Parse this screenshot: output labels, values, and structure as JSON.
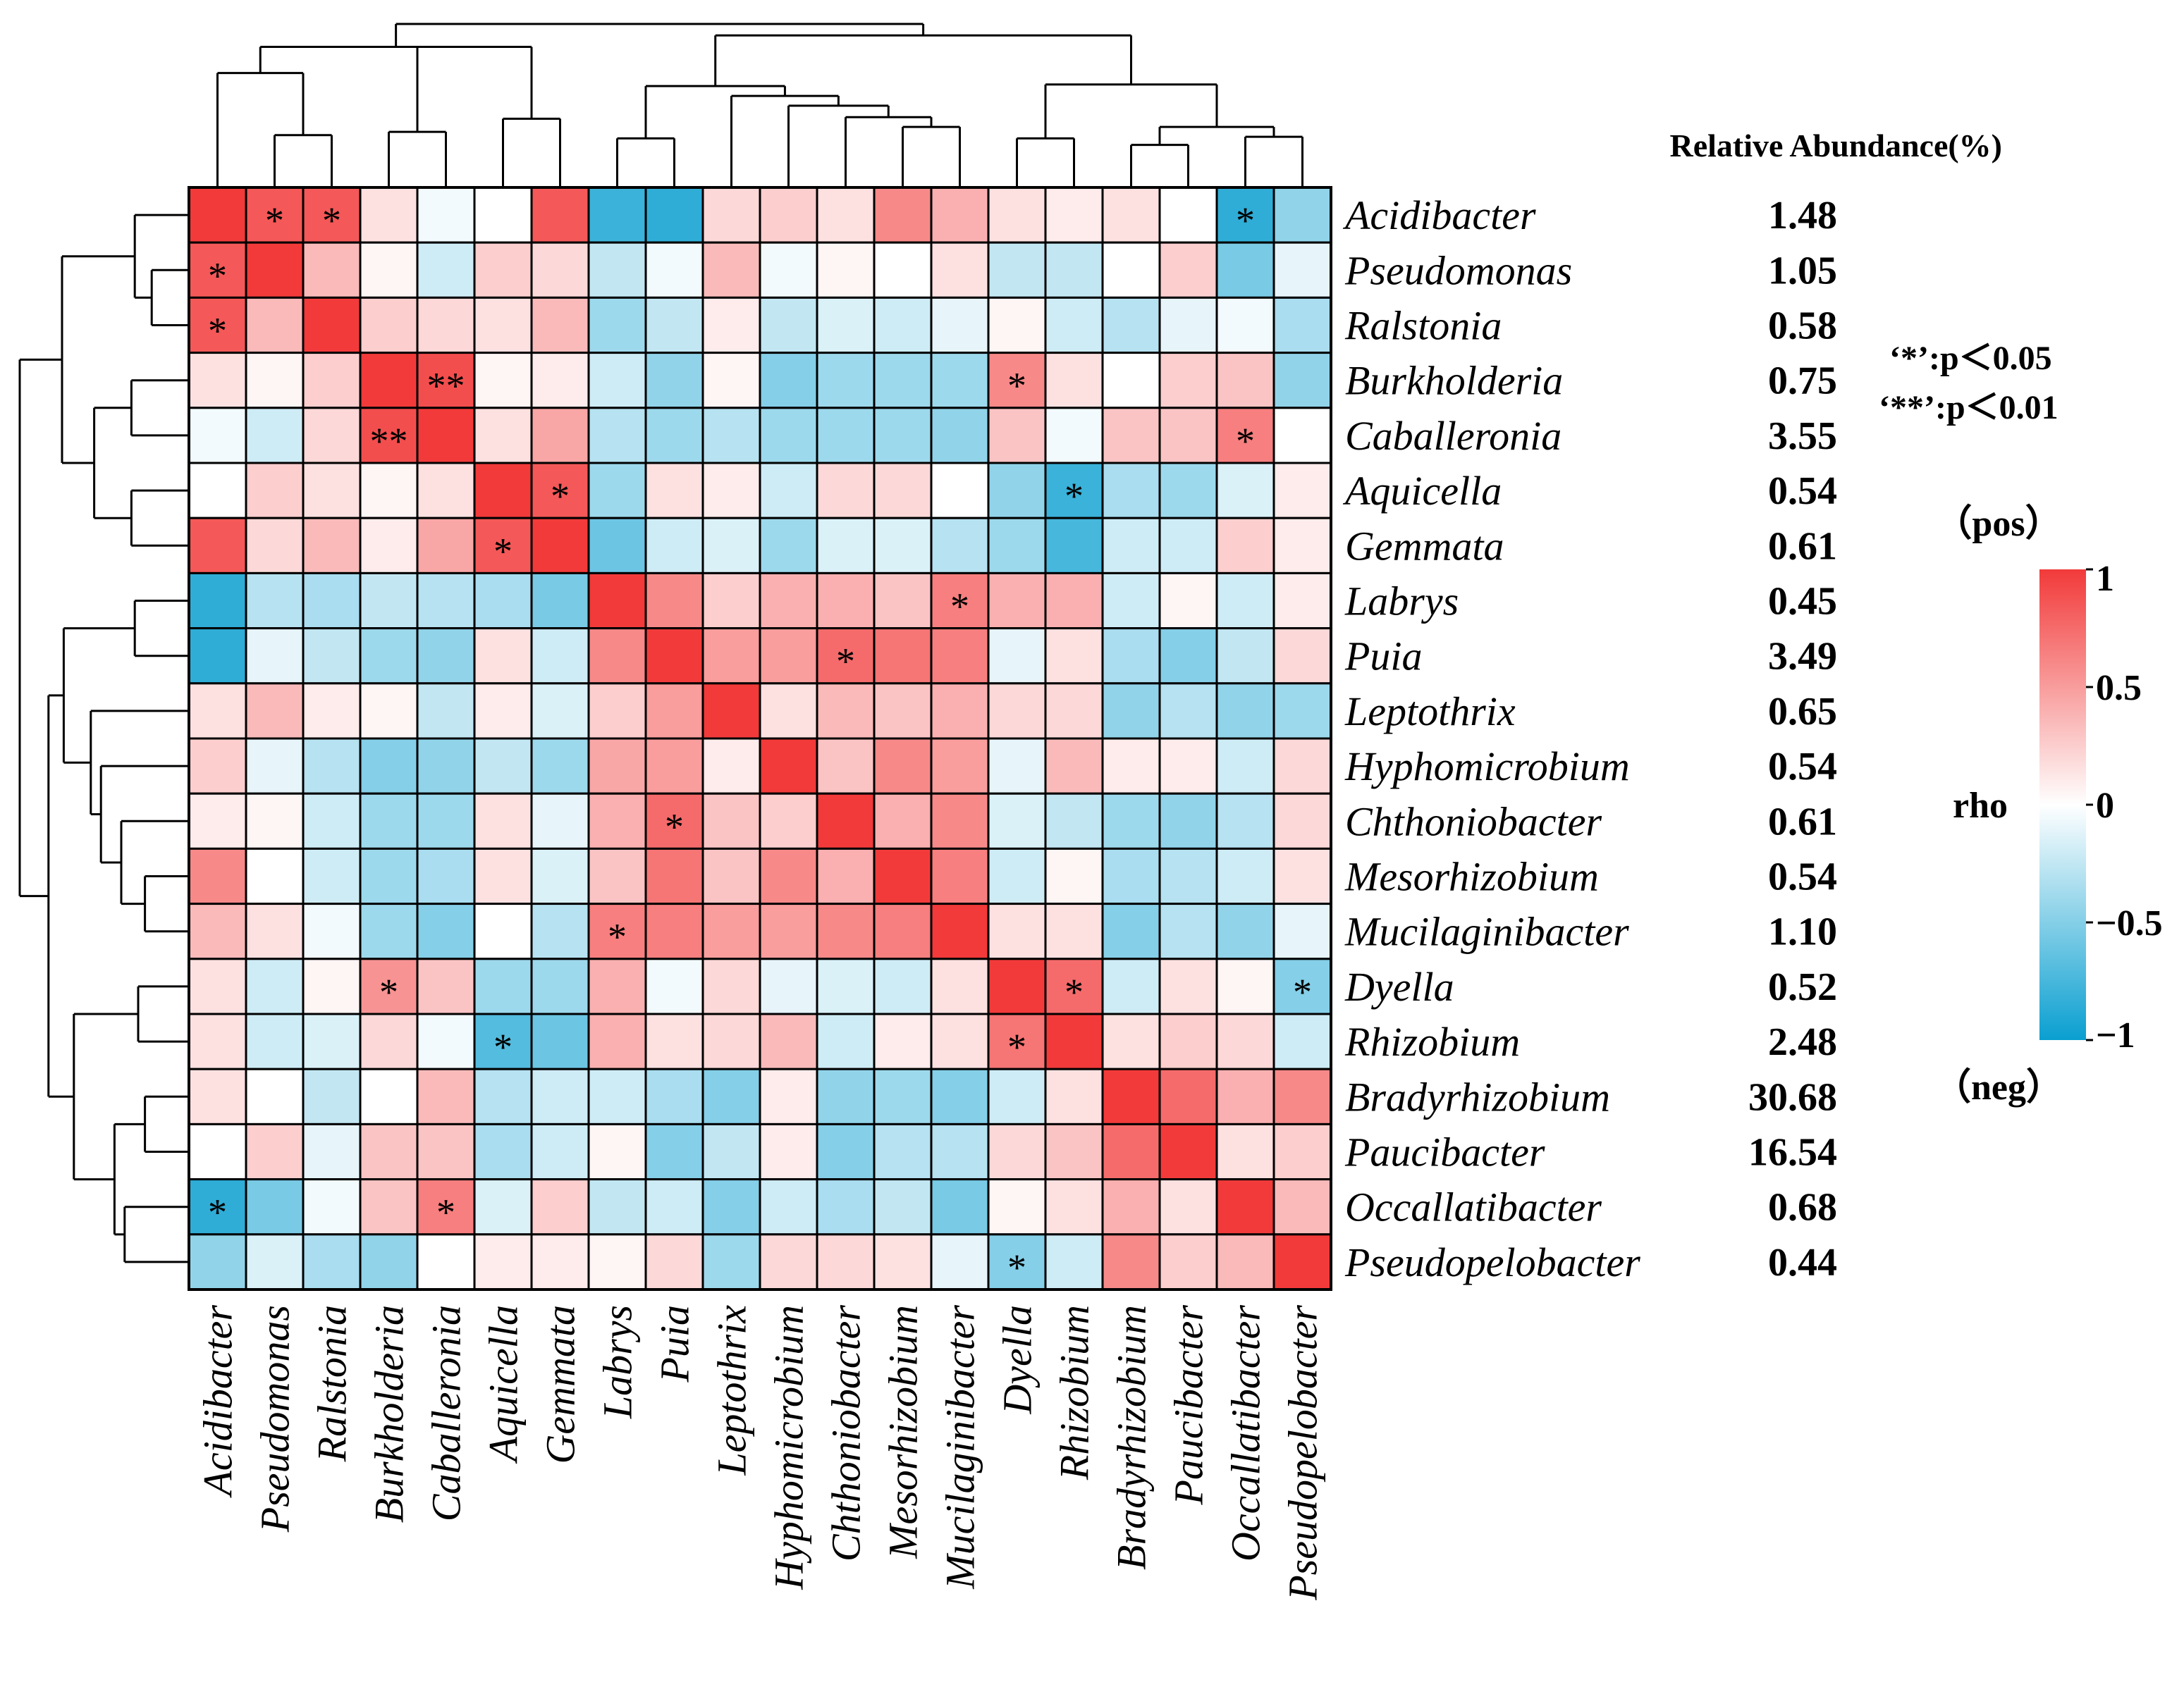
{
  "chart_data": {
    "type": "heatmap",
    "rows": [
      "Acidibacter",
      "Pseudomonas",
      "Ralstonia",
      "Burkholderia",
      "Caballeronia",
      "Aquicella",
      "Gemmata",
      "Labrys",
      "Puia",
      "Leptothrix",
      "Hyphomicrobium",
      "Chthoniobacter",
      "Mesorhizobium",
      "Mucilaginibacter",
      "Dyella",
      "Rhizobium",
      "Bradyrhizobium",
      "Paucibacter",
      "Occallatibacter",
      "Pseudopelobacter"
    ],
    "columns": [
      "Acidibacter",
      "Pseudomonas",
      "Ralstonia",
      "Burkholderia",
      "Caballeronia",
      "Aquicella",
      "Gemmata",
      "Labrys",
      "Puia",
      "Leptothrix",
      "Hyphomicrobium",
      "Chthoniobacter",
      "Mesorhizobium",
      "Mucilaginibacter",
      "Dyella",
      "Rhizobium",
      "Bradyrhizobium",
      "Paucibacter",
      "Occallatibacter",
      "Pseudopelobacter"
    ],
    "values": [
      [
        1.0,
        0.85,
        0.85,
        0.15,
        -0.05,
        0.0,
        0.85,
        -0.8,
        -0.85,
        0.2,
        0.25,
        0.15,
        0.6,
        0.4,
        0.15,
        0.1,
        0.15,
        0.0,
        -0.85,
        -0.45
      ],
      [
        0.85,
        1.0,
        0.35,
        0.05,
        -0.2,
        0.25,
        0.2,
        -0.25,
        -0.05,
        0.35,
        -0.05,
        0.05,
        0.0,
        0.15,
        -0.25,
        -0.25,
        0.0,
        0.25,
        -0.55,
        -0.1
      ],
      [
        0.85,
        0.35,
        1.0,
        0.25,
        0.2,
        0.15,
        0.35,
        -0.4,
        -0.25,
        0.1,
        -0.25,
        -0.15,
        -0.2,
        -0.1,
        0.05,
        -0.2,
        -0.3,
        -0.1,
        -0.05,
        -0.35
      ],
      [
        0.15,
        0.05,
        0.25,
        1.0,
        0.9,
        0.05,
        0.1,
        -0.2,
        -0.45,
        0.05,
        -0.5,
        -0.4,
        -0.4,
        -0.4,
        0.6,
        0.15,
        0.0,
        0.25,
        0.3,
        -0.45
      ],
      [
        -0.05,
        -0.2,
        0.2,
        0.9,
        1.0,
        0.15,
        0.45,
        -0.3,
        -0.4,
        -0.3,
        -0.4,
        -0.4,
        -0.4,
        -0.45,
        0.3,
        -0.05,
        0.3,
        0.3,
        0.65,
        0.0
      ],
      [
        0.0,
        0.25,
        0.15,
        0.05,
        0.15,
        1.0,
        0.85,
        -0.4,
        0.15,
        0.1,
        -0.2,
        0.2,
        0.2,
        0.0,
        -0.45,
        -0.8,
        -0.35,
        -0.4,
        -0.15,
        0.1
      ],
      [
        0.85,
        0.2,
        0.35,
        0.1,
        0.45,
        0.85,
        1.0,
        -0.6,
        -0.2,
        -0.15,
        -0.4,
        -0.15,
        -0.15,
        -0.3,
        -0.4,
        -0.75,
        -0.2,
        -0.2,
        0.25,
        0.1
      ],
      [
        -0.85,
        -0.3,
        -0.35,
        -0.25,
        -0.3,
        -0.35,
        -0.55,
        1.0,
        0.6,
        0.25,
        0.4,
        0.4,
        0.3,
        0.65,
        0.4,
        0.4,
        -0.2,
        0.05,
        -0.2,
        0.1
      ],
      [
        -0.85,
        -0.1,
        -0.25,
        -0.4,
        -0.45,
        0.15,
        -0.2,
        0.6,
        1.0,
        0.5,
        0.5,
        0.75,
        0.7,
        0.65,
        -0.1,
        0.15,
        -0.35,
        -0.5,
        -0.25,
        0.2
      ],
      [
        0.15,
        0.35,
        0.1,
        0.05,
        -0.25,
        0.1,
        -0.15,
        0.25,
        0.5,
        1.0,
        0.15,
        0.35,
        0.3,
        0.4,
        0.2,
        0.2,
        -0.45,
        -0.3,
        -0.45,
        -0.4
      ],
      [
        0.25,
        -0.1,
        -0.3,
        -0.5,
        -0.45,
        -0.25,
        -0.4,
        0.45,
        0.5,
        0.1,
        1.0,
        0.3,
        0.6,
        0.5,
        -0.1,
        0.35,
        0.1,
        0.1,
        -0.2,
        0.2
      ],
      [
        0.1,
        0.05,
        -0.2,
        -0.4,
        -0.4,
        0.15,
        -0.1,
        0.4,
        0.75,
        0.3,
        0.25,
        1.0,
        0.4,
        0.6,
        -0.15,
        -0.25,
        -0.4,
        -0.45,
        -0.3,
        0.2
      ],
      [
        0.6,
        0.0,
        -0.2,
        -0.4,
        -0.35,
        0.15,
        -0.15,
        0.3,
        0.7,
        0.3,
        0.6,
        0.4,
        1.0,
        0.65,
        -0.2,
        0.05,
        -0.35,
        -0.3,
        -0.2,
        0.15
      ],
      [
        0.35,
        0.15,
        -0.05,
        -0.4,
        -0.5,
        0.0,
        -0.3,
        0.65,
        0.65,
        0.5,
        0.5,
        0.6,
        0.65,
        1.0,
        0.15,
        0.15,
        -0.5,
        -0.3,
        -0.45,
        -0.1
      ],
      [
        0.15,
        -0.2,
        0.05,
        0.55,
        0.3,
        -0.4,
        -0.4,
        0.4,
        -0.05,
        0.2,
        -0.1,
        -0.15,
        -0.2,
        0.15,
        1.0,
        0.75,
        -0.2,
        0.15,
        0.05,
        -0.5
      ],
      [
        0.15,
        -0.2,
        -0.15,
        0.2,
        -0.05,
        -0.7,
        -0.6,
        0.4,
        0.15,
        0.2,
        0.35,
        -0.2,
        0.1,
        0.15,
        0.7,
        1.0,
        0.15,
        0.25,
        0.2,
        -0.2
      ],
      [
        0.15,
        0.0,
        -0.25,
        0.0,
        0.35,
        -0.3,
        -0.2,
        -0.2,
        -0.35,
        -0.5,
        0.1,
        -0.45,
        -0.4,
        -0.5,
        -0.2,
        0.15,
        1.0,
        0.75,
        0.4,
        0.6
      ],
      [
        0.0,
        0.25,
        -0.1,
        0.3,
        0.3,
        -0.35,
        -0.2,
        0.05,
        -0.5,
        -0.25,
        0.1,
        -0.5,
        -0.3,
        -0.3,
        0.2,
        0.3,
        0.75,
        1.0,
        0.15,
        0.25
      ],
      [
        -0.85,
        -0.55,
        -0.05,
        0.3,
        0.65,
        -0.15,
        0.25,
        -0.25,
        -0.2,
        -0.5,
        -0.2,
        -0.35,
        -0.25,
        -0.55,
        0.05,
        0.15,
        0.4,
        0.15,
        1.0,
        0.35
      ],
      [
        -0.45,
        -0.15,
        -0.35,
        -0.45,
        0.0,
        0.1,
        0.1,
        0.05,
        0.2,
        -0.4,
        0.2,
        0.2,
        0.15,
        -0.1,
        -0.5,
        -0.2,
        0.6,
        0.25,
        0.35,
        1.0
      ]
    ],
    "significance": [
      {
        "row": 0,
        "col": 1,
        "mark": "*"
      },
      {
        "row": 0,
        "col": 2,
        "mark": "*"
      },
      {
        "row": 0,
        "col": 18,
        "mark": "*"
      },
      {
        "row": 1,
        "col": 0,
        "mark": "*"
      },
      {
        "row": 2,
        "col": 0,
        "mark": "*"
      },
      {
        "row": 3,
        "col": 4,
        "mark": "**"
      },
      {
        "row": 3,
        "col": 14,
        "mark": "*"
      },
      {
        "row": 4,
        "col": 3,
        "mark": "**"
      },
      {
        "row": 4,
        "col": 18,
        "mark": "*"
      },
      {
        "row": 5,
        "col": 6,
        "mark": "*"
      },
      {
        "row": 5,
        "col": 15,
        "mark": "*"
      },
      {
        "row": 6,
        "col": 5,
        "mark": "*"
      },
      {
        "row": 7,
        "col": 13,
        "mark": "*"
      },
      {
        "row": 8,
        "col": 11,
        "mark": "*"
      },
      {
        "row": 11,
        "col": 8,
        "mark": "*"
      },
      {
        "row": 13,
        "col": 7,
        "mark": "*"
      },
      {
        "row": 14,
        "col": 3,
        "mark": "*"
      },
      {
        "row": 14,
        "col": 15,
        "mark": "*"
      },
      {
        "row": 14,
        "col": 19,
        "mark": "*"
      },
      {
        "row": 15,
        "col": 5,
        "mark": "*"
      },
      {
        "row": 15,
        "col": 14,
        "mark": "*"
      },
      {
        "row": 18,
        "col": 0,
        "mark": "*"
      },
      {
        "row": 18,
        "col": 4,
        "mark": "*"
      },
      {
        "row": 19,
        "col": 14,
        "mark": "*"
      }
    ],
    "relative_abundance_title": "Relative Abundance(%)",
    "relative_abundance": [
      "1.48",
      "1.05",
      "0.58",
      "0.75",
      "3.55",
      "0.54",
      "0.61",
      "0.45",
      "3.49",
      "0.65",
      "0.54",
      "0.61",
      "0.54",
      "1.10",
      "0.52",
      "2.48",
      "30.68",
      "16.54",
      "0.68",
      "0.44"
    ],
    "significance_legend": [
      "‘*’:p＜0.05",
      "‘**’:p＜0.01"
    ],
    "colorbar": {
      "title": "rho",
      "top_label": "（pos）",
      "bottom_label": "（neg）",
      "range": [
        -1,
        1
      ],
      "ticks": [
        1,
        0.5,
        0,
        -0.5,
        -1
      ],
      "tick_labels": [
        "1",
        "0.5",
        "0",
        "−0.5",
        "−1"
      ],
      "colors": {
        "negative": "#0a9fd0",
        "zero": "#ffffff",
        "positive": "#f23a3a"
      }
    },
    "dendrogram": {
      "columns_top": [
        [
          0,
          2,
          0.7
        ],
        [
          1,
          2,
          0.32
        ],
        [
          3,
          4,
          0.34
        ],
        [
          5,
          6,
          0.42
        ],
        [
          0,
          6,
          0.86
        ],
        [
          7,
          8,
          0.3
        ],
        [
          12,
          13,
          0.37
        ],
        [
          11,
          13,
          0.43
        ],
        [
          10,
          13,
          0.5
        ],
        [
          9,
          13,
          0.56
        ],
        [
          7,
          13,
          0.62
        ],
        [
          14,
          15,
          0.3
        ],
        [
          16,
          17,
          0.26
        ],
        [
          18,
          19,
          0.31
        ],
        [
          16,
          19,
          0.37
        ],
        [
          14,
          19,
          0.63
        ],
        [
          7,
          19,
          0.93
        ],
        [
          0,
          19,
          1.0
        ]
      ],
      "rows_left": [
        [
          0,
          2,
          0.32
        ],
        [
          1,
          2,
          0.22
        ],
        [
          3,
          4,
          0.34
        ],
        [
          5,
          6,
          0.34
        ],
        [
          3,
          6,
          0.56
        ],
        [
          0,
          6,
          0.75
        ],
        [
          7,
          8,
          0.32
        ],
        [
          12,
          13,
          0.26
        ],
        [
          11,
          13,
          0.4
        ],
        [
          10,
          13,
          0.52
        ],
        [
          9,
          13,
          0.58
        ],
        [
          7,
          13,
          0.74
        ],
        [
          14,
          15,
          0.3
        ],
        [
          16,
          17,
          0.26
        ],
        [
          18,
          19,
          0.38
        ],
        [
          16,
          19,
          0.44
        ],
        [
          14,
          19,
          0.68
        ],
        [
          7,
          19,
          0.83
        ],
        [
          0,
          19,
          1.0
        ]
      ]
    }
  }
}
